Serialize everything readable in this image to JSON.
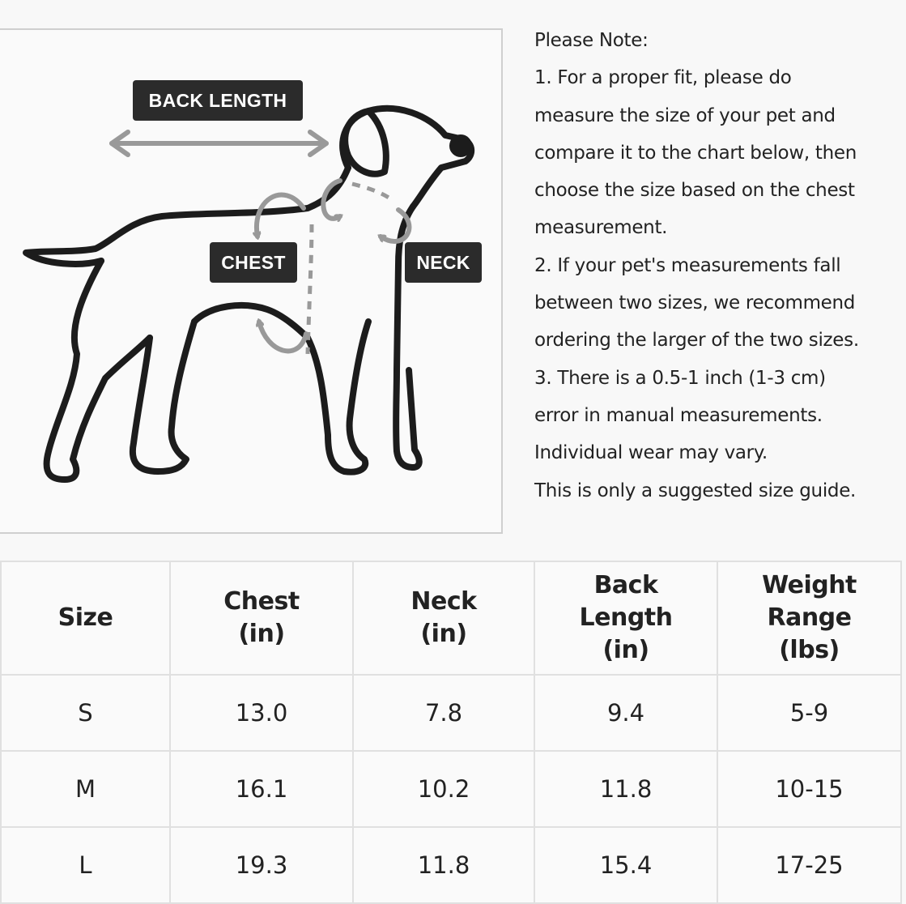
{
  "diagram": {
    "labels": {
      "back_length": "BACK LENGTH",
      "chest": "CHEST",
      "neck": "NECK"
    },
    "icon": "dog-outline-measurement-icon"
  },
  "notes": {
    "lines": [
      "Please Note:",
      "1. For a proper fit, please do",
      "measure the size of your pet and",
      "compare it to the chart below, then",
      "choose the size based on the chest",
      "measurement.",
      "2. If your pet's measurements fall",
      "between two sizes, we recommend",
      "ordering the larger of the two sizes.",
      "3. There is a 0.5-1 inch (1-3 cm)",
      "error in manual measurements.",
      "Individual wear may vary.",
      "This is only a suggested size guide."
    ]
  },
  "table": {
    "headers": [
      [
        "Size"
      ],
      [
        "Chest",
        "(in)"
      ],
      [
        "Neck",
        "(in)"
      ],
      [
        "Back",
        "Length",
        "(in)"
      ],
      [
        "Weight",
        "Range",
        "(lbs)"
      ]
    ],
    "rows": [
      [
        "S",
        "13.0",
        "7.8",
        "9.4",
        "5-9"
      ],
      [
        "M",
        "16.1",
        "10.2",
        "11.8",
        "10-15"
      ],
      [
        "L",
        "19.3",
        "11.8",
        "15.4",
        "17-25"
      ]
    ]
  }
}
